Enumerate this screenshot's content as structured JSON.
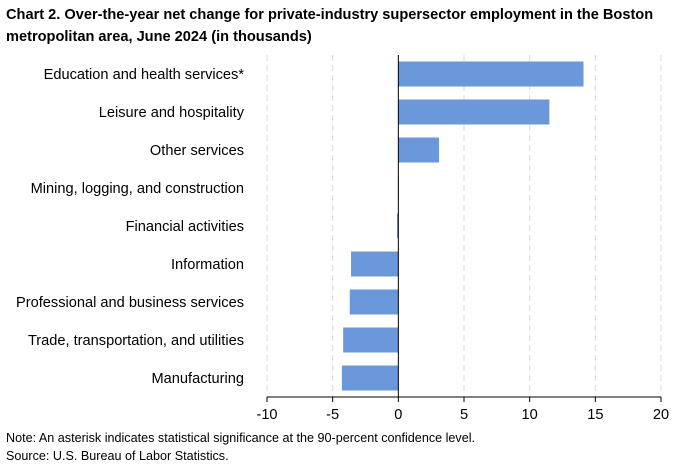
{
  "chart_data": {
    "type": "bar",
    "orientation": "horizontal",
    "title": "Chart 2. Over-the-year net change for private-industry supersector employment in the Boston metropolitan area, June 2024 (in thousands)",
    "categories": [
      "Education and health services*",
      "Leisure and hospitality",
      "Other services",
      "Mining, logging, and construction",
      "Financial activities",
      "Information",
      "Professional and business services",
      "Trade, transportation, and utilities",
      "Manufacturing"
    ],
    "values": [
      14.1,
      11.5,
      3.1,
      0.0,
      -0.1,
      -3.6,
      -3.7,
      -4.2,
      -4.3
    ],
    "xlim": [
      -10,
      20
    ],
    "xticks": [
      -10,
      -5,
      0,
      5,
      10,
      15,
      20
    ],
    "xlabel": "",
    "ylabel": "",
    "grid": "vertical dashed",
    "bar_color": "#6a98d9"
  },
  "note": "Note: An asterisk indicates statistical significance at the 90-percent confidence level.",
  "source": "Source: U.S. Bureau of Labor Statistics."
}
